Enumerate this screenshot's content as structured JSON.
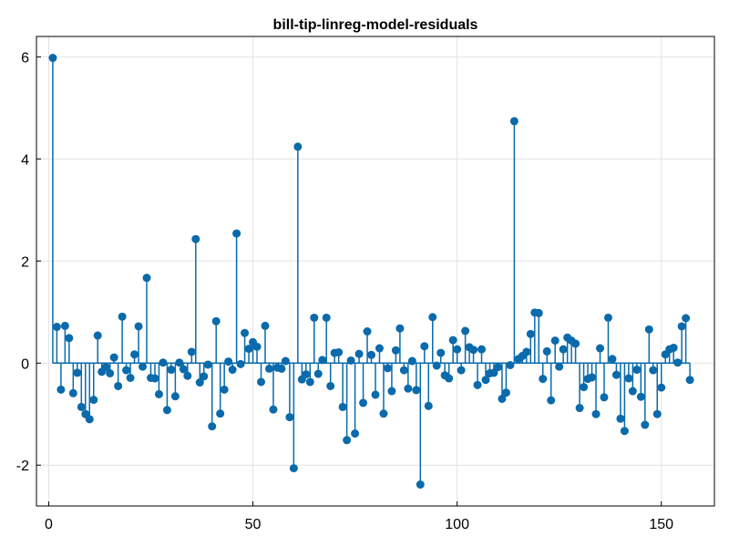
{
  "chart_data": {
    "type": "stem",
    "title": "bill-tip-linreg-model-residuals",
    "xlabel": "",
    "ylabel": "",
    "xlim": [
      -3,
      163
    ],
    "ylim": [
      -2.8,
      6.4
    ],
    "xticks": [
      0,
      50,
      100,
      150
    ],
    "xtick_labels": [
      "0",
      "50",
      "100",
      "150"
    ],
    "yticks": [
      -2,
      0,
      2,
      4,
      6
    ],
    "ytick_labels": [
      "-2",
      "0",
      "2",
      "4",
      "6"
    ],
    "grid": true,
    "baseline": 0,
    "color": "#0a6aab",
    "x": [
      1,
      2,
      3,
      4,
      5,
      6,
      7,
      8,
      9,
      10,
      11,
      12,
      13,
      14,
      15,
      16,
      17,
      18,
      19,
      20,
      21,
      22,
      23,
      24,
      25,
      26,
      27,
      28,
      29,
      30,
      31,
      32,
      33,
      34,
      35,
      36,
      37,
      38,
      39,
      40,
      41,
      42,
      43,
      44,
      45,
      46,
      47,
      48,
      49,
      50,
      51,
      52,
      53,
      54,
      55,
      56,
      57,
      58,
      59,
      60,
      61,
      62,
      63,
      64,
      65,
      66,
      67,
      68,
      69,
      70,
      71,
      72,
      73,
      74,
      75,
      76,
      77,
      78,
      79,
      80,
      81,
      82,
      83,
      84,
      85,
      86,
      87,
      88,
      89,
      90,
      91,
      92,
      93,
      94,
      95,
      96,
      97,
      98,
      99,
      100,
      101,
      102,
      103,
      104,
      105,
      106,
      107,
      108,
      109,
      110,
      111,
      112,
      113,
      114,
      115,
      116,
      117,
      118,
      119,
      120,
      121,
      122,
      123,
      124,
      125,
      126,
      127,
      128,
      129,
      130,
      131,
      132,
      133,
      134,
      135,
      136,
      137,
      138,
      139,
      140,
      141,
      142,
      143,
      144,
      145,
      146,
      147,
      148,
      149,
      150,
      151,
      152,
      153,
      154,
      155,
      156,
      157
    ],
    "y": [
      5.98,
      0.71,
      -0.52,
      0.73,
      0.49,
      -0.59,
      -0.19,
      -0.86,
      -1.0,
      -1.1,
      -0.72,
      0.54,
      -0.17,
      -0.08,
      -0.2,
      0.11,
      -0.45,
      0.91,
      -0.14,
      -0.29,
      0.17,
      0.72,
      -0.07,
      1.67,
      -0.29,
      -0.3,
      -0.61,
      0.01,
      -0.92,
      -0.13,
      -0.65,
      0.01,
      -0.12,
      -0.25,
      0.22,
      2.43,
      -0.38,
      -0.26,
      -0.03,
      -1.24,
      0.82,
      -0.99,
      -0.52,
      0.03,
      -0.13,
      2.54,
      -0.02,
      0.59,
      0.28,
      0.41,
      0.32,
      -0.37,
      0.73,
      -0.11,
      -0.91,
      -0.09,
      -0.11,
      0.04,
      -1.06,
      -2.06,
      4.24,
      -0.32,
      -0.22,
      -0.37,
      0.89,
      -0.21,
      0.06,
      0.89,
      -0.45,
      0.2,
      0.21,
      -0.86,
      -1.51,
      0.05,
      -1.38,
      0.18,
      -0.78,
      0.62,
      0.16,
      -0.62,
      0.29,
      -0.99,
      -0.1,
      -0.55,
      0.25,
      0.68,
      -0.14,
      -0.5,
      0.04,
      -0.53,
      -2.38,
      0.33,
      -0.84,
      0.9,
      -0.05,
      0.2,
      -0.24,
      -0.3,
      0.45,
      0.27,
      -0.14,
      0.63,
      0.31,
      0.26,
      -0.43,
      0.27,
      -0.33,
      -0.2,
      -0.19,
      -0.08,
      -0.7,
      -0.58,
      -0.04,
      4.74,
      0.08,
      0.14,
      0.22,
      0.57,
      0.99,
      0.98,
      -0.31,
      0.23,
      -0.73,
      0.44,
      -0.07,
      0.27,
      0.5,
      0.44,
      0.38,
      -0.88,
      -0.47,
      -0.31,
      -0.28,
      -1.0,
      0.29,
      -0.67,
      0.89,
      0.08,
      -0.23,
      -1.09,
      -1.33,
      -0.3,
      -0.55,
      -0.13,
      -0.66,
      -1.21,
      0.66,
      -0.14,
      -1.0,
      -0.48,
      0.17,
      0.27,
      0.3,
      0.01,
      0.72,
      0.88,
      -0.33
    ]
  }
}
